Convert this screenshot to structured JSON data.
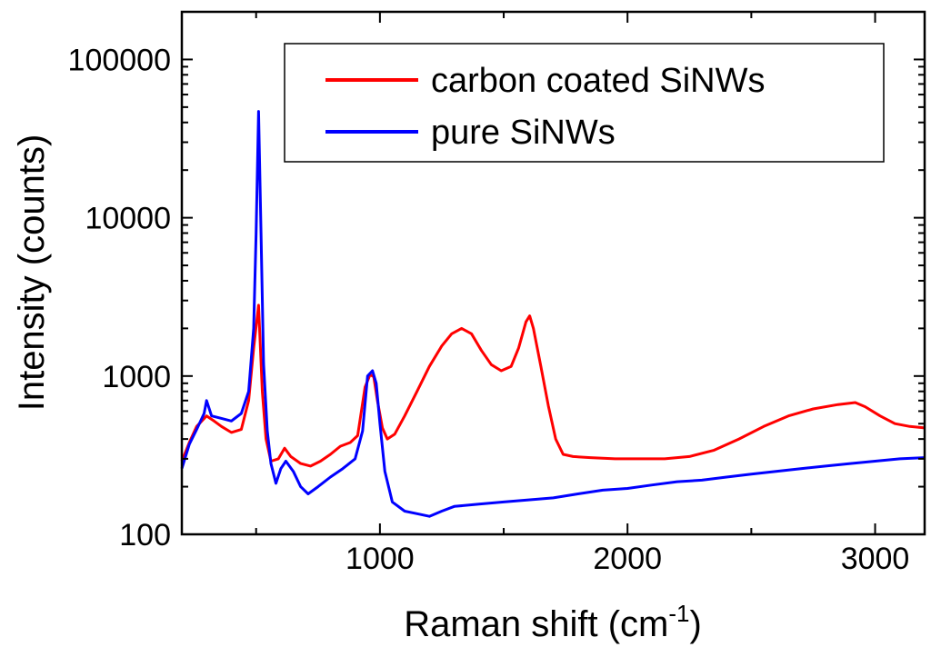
{
  "chart_data": {
    "type": "line",
    "title": "",
    "xlabel": "Raman shift (cm",
    "xlabel_superscript": "-1",
    "xlabel_close": ")",
    "ylabel": "Intensity (counts)",
    "xlim": [
      200,
      3200
    ],
    "ylim": [
      100,
      200000
    ],
    "yscale": "log",
    "grid": false,
    "legend_position": "top-right",
    "x_ticks": [
      {
        "value": 1000,
        "label": "1000"
      },
      {
        "value": 2000,
        "label": "2000"
      },
      {
        "value": 3000,
        "label": "3000"
      }
    ],
    "y_ticks": [
      {
        "value": 100,
        "label": "100"
      },
      {
        "value": 1000,
        "label": "1000"
      },
      {
        "value": 10000,
        "label": "10000"
      },
      {
        "value": 100000,
        "label": "100000"
      }
    ],
    "series": [
      {
        "name": "carbon coated SiNWs",
        "color": "#ff0000",
        "points": [
          [
            200,
            290
          ],
          [
            230,
            380
          ],
          [
            260,
            480
          ],
          [
            300,
            560
          ],
          [
            330,
            520
          ],
          [
            360,
            480
          ],
          [
            400,
            440
          ],
          [
            440,
            460
          ],
          [
            470,
            700
          ],
          [
            490,
            1500
          ],
          [
            510,
            2800
          ],
          [
            525,
            800
          ],
          [
            540,
            400
          ],
          [
            560,
            290
          ],
          [
            590,
            300
          ],
          [
            615,
            350
          ],
          [
            640,
            310
          ],
          [
            680,
            280
          ],
          [
            720,
            270
          ],
          [
            760,
            290
          ],
          [
            800,
            320
          ],
          [
            840,
            360
          ],
          [
            880,
            380
          ],
          [
            910,
            420
          ],
          [
            940,
            850
          ],
          [
            960,
            1020
          ],
          [
            975,
            990
          ],
          [
            990,
            700
          ],
          [
            1010,
            470
          ],
          [
            1030,
            400
          ],
          [
            1060,
            430
          ],
          [
            1100,
            560
          ],
          [
            1150,
            800
          ],
          [
            1200,
            1150
          ],
          [
            1250,
            1550
          ],
          [
            1290,
            1850
          ],
          [
            1330,
            2000
          ],
          [
            1370,
            1850
          ],
          [
            1410,
            1450
          ],
          [
            1450,
            1180
          ],
          [
            1490,
            1080
          ],
          [
            1530,
            1150
          ],
          [
            1560,
            1500
          ],
          [
            1590,
            2200
          ],
          [
            1605,
            2400
          ],
          [
            1620,
            2000
          ],
          [
            1650,
            1150
          ],
          [
            1680,
            650
          ],
          [
            1710,
            400
          ],
          [
            1740,
            320
          ],
          [
            1780,
            310
          ],
          [
            1850,
            305
          ],
          [
            1950,
            300
          ],
          [
            2050,
            300
          ],
          [
            2150,
            300
          ],
          [
            2250,
            310
          ],
          [
            2350,
            340
          ],
          [
            2450,
            400
          ],
          [
            2550,
            480
          ],
          [
            2650,
            560
          ],
          [
            2750,
            620
          ],
          [
            2850,
            660
          ],
          [
            2920,
            680
          ],
          [
            2960,
            640
          ],
          [
            3020,
            560
          ],
          [
            3080,
            500
          ],
          [
            3140,
            480
          ],
          [
            3200,
            470
          ]
        ]
      },
      {
        "name": "pure SiNWs",
        "color": "#0000ff",
        "points": [
          [
            200,
            260
          ],
          [
            230,
            370
          ],
          [
            260,
            460
          ],
          [
            290,
            580
          ],
          [
            300,
            700
          ],
          [
            320,
            560
          ],
          [
            360,
            540
          ],
          [
            400,
            520
          ],
          [
            440,
            580
          ],
          [
            470,
            800
          ],
          [
            490,
            2000
          ],
          [
            500,
            8000
          ],
          [
            510,
            47000
          ],
          [
            520,
            8000
          ],
          [
            530,
            1200
          ],
          [
            545,
            450
          ],
          [
            560,
            280
          ],
          [
            580,
            210
          ],
          [
            600,
            260
          ],
          [
            620,
            290
          ],
          [
            650,
            250
          ],
          [
            680,
            200
          ],
          [
            710,
            180
          ],
          [
            750,
            200
          ],
          [
            800,
            230
          ],
          [
            850,
            260
          ],
          [
            900,
            300
          ],
          [
            930,
            450
          ],
          [
            950,
            1000
          ],
          [
            970,
            1080
          ],
          [
            985,
            900
          ],
          [
            1000,
            500
          ],
          [
            1020,
            250
          ],
          [
            1050,
            160
          ],
          [
            1100,
            140
          ],
          [
            1150,
            135
          ],
          [
            1200,
            130
          ],
          [
            1250,
            140
          ],
          [
            1300,
            150
          ],
          [
            1400,
            155
          ],
          [
            1500,
            160
          ],
          [
            1600,
            165
          ],
          [
            1700,
            170
          ],
          [
            1800,
            180
          ],
          [
            1900,
            190
          ],
          [
            2000,
            195
          ],
          [
            2100,
            205
          ],
          [
            2200,
            215
          ],
          [
            2300,
            220
          ],
          [
            2400,
            230
          ],
          [
            2500,
            240
          ],
          [
            2600,
            250
          ],
          [
            2700,
            260
          ],
          [
            2800,
            270
          ],
          [
            2900,
            280
          ],
          [
            3000,
            290
          ],
          [
            3100,
            300
          ],
          [
            3200,
            305
          ]
        ]
      }
    ]
  }
}
